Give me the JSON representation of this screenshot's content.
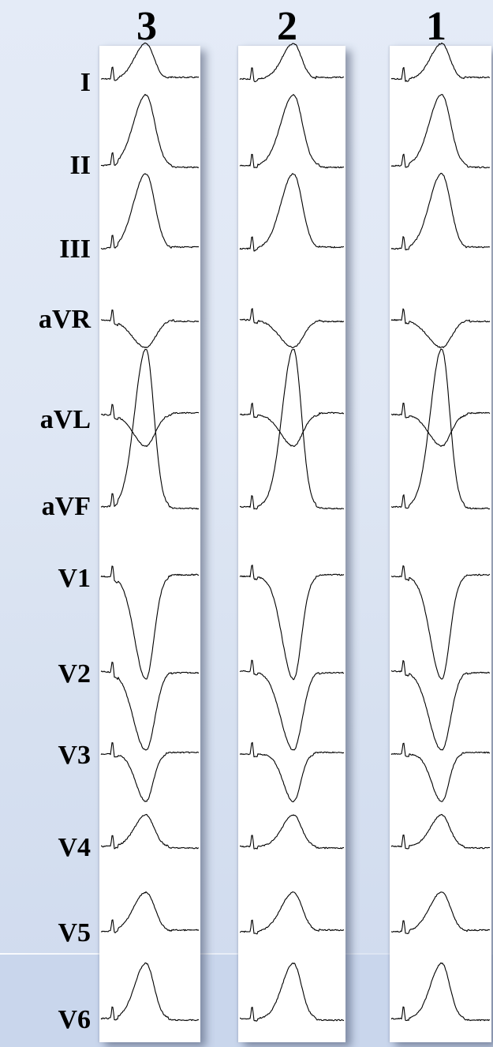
{
  "columns": [
    {
      "id": "3",
      "label": "3"
    },
    {
      "id": "2",
      "label": "2"
    },
    {
      "id": "1",
      "label": "1"
    }
  ],
  "leads": [
    "I",
    "II",
    "III",
    "aVR",
    "aVL",
    "aVF",
    "V1",
    "V2",
    "V3",
    "V4",
    "V5",
    "V6"
  ]
}
